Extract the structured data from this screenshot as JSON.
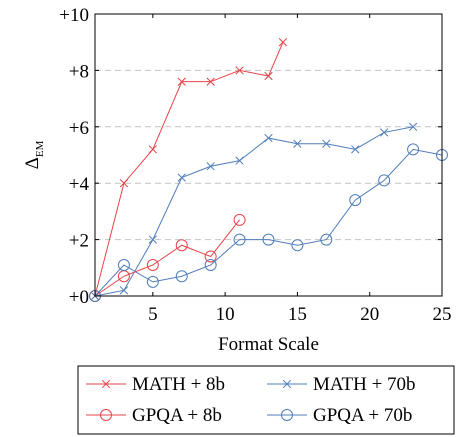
{
  "colors": {
    "red": "#e8434a",
    "blue": "#4f7ebb",
    "grid": "#c4c4c4",
    "axis": "#000000"
  },
  "chart_data": {
    "type": "line",
    "title": "",
    "xlabel": "Format Scale",
    "ylabel_main": "Δ",
    "ylabel_sub": "EM",
    "xlim": [
      1,
      25
    ],
    "ylim": [
      0,
      10
    ],
    "x_ticks": [
      5,
      10,
      15,
      20,
      25
    ],
    "y_ticks": [
      0,
      2,
      4,
      6,
      8,
      10
    ],
    "y_tick_labels": [
      "+0",
      "+2",
      "+4",
      "+6",
      "+8",
      "+10"
    ],
    "grid": "horizontal dashed at +2, +4, +6, +8",
    "legend_position": "below plot",
    "series": [
      {
        "name": "MATH + 8b",
        "color": "red",
        "marker": "cross",
        "x": [
          1,
          3,
          5,
          7,
          9,
          11,
          13,
          14
        ],
        "y": [
          0,
          4.0,
          5.2,
          7.6,
          7.6,
          8.0,
          7.8,
          9.0
        ]
      },
      {
        "name": "MATH + 70b",
        "color": "blue",
        "marker": "cross",
        "x": [
          1,
          3,
          5,
          7,
          9,
          11,
          13,
          15,
          17,
          19,
          21,
          23
        ],
        "y": [
          0,
          0.2,
          2.0,
          4.2,
          4.6,
          4.8,
          5.6,
          5.4,
          5.4,
          5.2,
          5.8,
          6.0
        ]
      },
      {
        "name": "GPQA + 8b",
        "color": "red",
        "marker": "circle",
        "x": [
          1,
          3,
          5,
          7,
          9,
          11
        ],
        "y": [
          0,
          0.7,
          1.1,
          1.8,
          1.4,
          2.7
        ]
      },
      {
        "name": "GPQA + 70b",
        "color": "blue",
        "marker": "circle",
        "x": [
          1,
          3,
          5,
          7,
          9,
          11,
          13,
          15,
          17,
          19,
          21,
          23,
          25
        ],
        "y": [
          0,
          1.1,
          0.5,
          0.7,
          1.1,
          2.0,
          2.0,
          1.8,
          2.0,
          3.4,
          4.1,
          5.2,
          5.0
        ]
      }
    ]
  }
}
